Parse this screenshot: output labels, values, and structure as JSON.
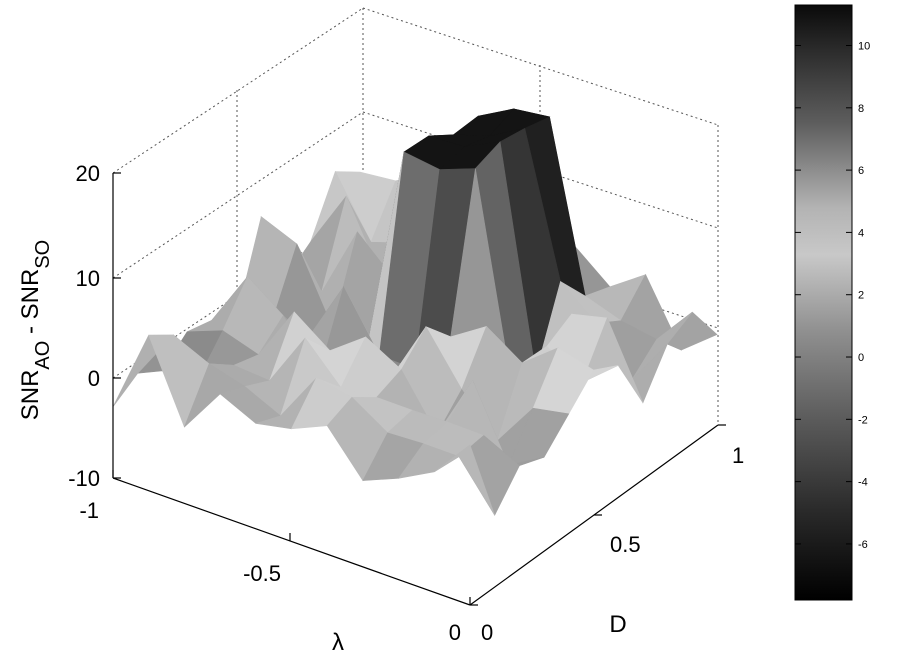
{
  "chart_data": {
    "type": "surface",
    "zlabel_main": "SNR",
    "zlabel_sub1": "AO",
    "zlabel_sep": " - SNR",
    "zlabel_sub2": "SO",
    "xlabel": "λ",
    "ylabel": "D",
    "xlim": [
      -1,
      0
    ],
    "ylim": [
      0,
      1
    ],
    "zlim": [
      -10,
      20
    ],
    "zticks": [
      "20",
      "10",
      "0",
      "-10"
    ],
    "xticks": [
      "-1",
      "-0.5",
      "0"
    ],
    "yticks": [
      "0",
      "0.5",
      "1"
    ],
    "colorbar": {
      "ticks": [
        "10",
        "8",
        "6",
        "4",
        "2",
        "0",
        "-2",
        "-4",
        "-6"
      ],
      "range": [
        -7.8,
        11.3
      ],
      "colormap": "gray"
    },
    "grid": true,
    "surface": {
      "description_values_approx": true,
      "lambda": [
        -1.0,
        -0.9,
        -0.8,
        -0.7,
        -0.6,
        -0.5,
        -0.4,
        -0.3,
        -0.2,
        -0.1,
        0.0
      ],
      "D": [
        0.0,
        0.1,
        0.2,
        0.3,
        0.4,
        0.5,
        0.6,
        0.7,
        0.8,
        0.9,
        1.0
      ],
      "peak_region": {
        "lambda": [
          -0.6,
          -0.35
        ],
        "D": [
          0.55,
          0.95
        ],
        "z_max": 18
      }
    }
  }
}
